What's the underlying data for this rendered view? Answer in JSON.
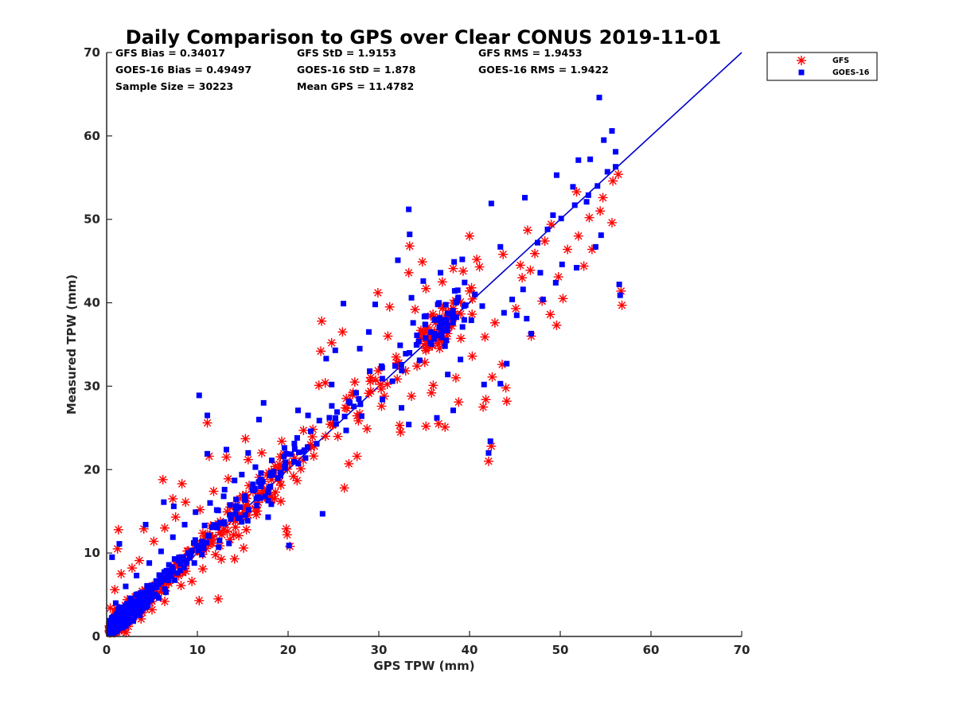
{
  "chart_data": {
    "type": "scatter",
    "title": "Daily Comparison to GPS over Clear CONUS 2019-11-01",
    "xlabel": "GPS TPW (mm)",
    "ylabel": "Measured TPW (mm)",
    "xlim": [
      0,
      70
    ],
    "ylim": [
      0,
      70
    ],
    "xticks": [
      "0",
      "10",
      "20",
      "30",
      "40",
      "50",
      "60",
      "70"
    ],
    "yticks": [
      "0",
      "10",
      "20",
      "30",
      "40",
      "50",
      "60",
      "70"
    ],
    "legend_position": "outside-top-right",
    "stats": [
      [
        "GFS Bias = 0.34017",
        "GFS StD = 1.9153",
        "GFS RMS = 1.9453"
      ],
      [
        "GOES-16 Bias = 0.49497",
        "GOES-16 StD = 1.878",
        "GOES-16 RMS = 1.9422"
      ],
      [
        "Sample Size = 30223",
        "Mean GPS = 11.4782"
      ]
    ],
    "reference_line": {
      "name": "1:1 line",
      "color": "#0000cc",
      "x": [
        0,
        70
      ],
      "y": [
        0,
        70
      ]
    },
    "series": [
      {
        "name": "GFS",
        "marker": "asterisk",
        "color": "#ff0000",
        "points": [
          [
            1.3,
            12.8
          ],
          [
            1.2,
            10.5
          ],
          [
            4.1,
            12.9
          ],
          [
            6.2,
            18.8
          ],
          [
            7.3,
            16.5
          ],
          [
            8.3,
            18.3
          ],
          [
            11.1,
            25.6
          ],
          [
            11.3,
            21.6
          ],
          [
            13.2,
            21.5
          ],
          [
            15.3,
            23.7
          ],
          [
            15.1,
            10.6
          ],
          [
            14.1,
            9.3
          ],
          [
            12.3,
            4.5
          ],
          [
            10.2,
            4.3
          ],
          [
            19.2,
            16.2
          ],
          [
            19.8,
            12.9
          ],
          [
            19.9,
            12.2
          ],
          [
            20.2,
            10.8
          ],
          [
            23.7,
            37.8
          ],
          [
            23.6,
            34.2
          ],
          [
            24.8,
            35.2
          ],
          [
            26.0,
            36.5
          ],
          [
            26.7,
            20.7
          ],
          [
            26.2,
            17.8
          ],
          [
            23.4,
            30.1
          ],
          [
            26.3,
            27.4
          ],
          [
            27.6,
            21.6
          ],
          [
            30.3,
            27.6
          ],
          [
            30.6,
            28.8
          ],
          [
            32.4,
            24.5
          ],
          [
            32.3,
            25.3
          ],
          [
            35.2,
            25.2
          ],
          [
            36.6,
            25.5
          ],
          [
            37.3,
            25.1
          ],
          [
            33.3,
            43.6
          ],
          [
            33.4,
            46.8
          ],
          [
            34.8,
            44.9
          ],
          [
            40.0,
            48.0
          ],
          [
            41.1,
            44.3
          ],
          [
            41.5,
            27.5
          ],
          [
            41.8,
            28.4
          ],
          [
            42.1,
            21.0
          ],
          [
            42.4,
            22.8
          ],
          [
            44.1,
            28.2
          ],
          [
            43.6,
            32.6
          ],
          [
            42.5,
            31.1
          ],
          [
            45.1,
            39.3
          ],
          [
            45.8,
            43.0
          ],
          [
            45.6,
            44.5
          ],
          [
            46.8,
            36.0
          ],
          [
            48.0,
            40.2
          ],
          [
            48.9,
            38.6
          ],
          [
            49.6,
            37.3
          ],
          [
            50.3,
            40.5
          ],
          [
            49.8,
            43.1
          ],
          [
            50.8,
            46.4
          ],
          [
            52.6,
            44.4
          ],
          [
            53.5,
            46.4
          ],
          [
            54.4,
            51.0
          ],
          [
            55.7,
            49.6
          ],
          [
            56.7,
            41.4
          ],
          [
            56.8,
            39.7
          ],
          [
            55.8,
            54.6
          ],
          [
            56.4,
            55.4
          ],
          [
            46.4,
            48.7
          ],
          [
            48.3,
            47.4
          ],
          [
            51.8,
            53.3
          ],
          [
            46.7,
            43.9
          ],
          [
            43.7,
            45.8
          ],
          [
            38.2,
            44.1
          ],
          [
            35.8,
            29.2
          ],
          [
            33.6,
            28.8
          ],
          [
            38.8,
            28.1
          ],
          [
            31.9,
            33.5
          ],
          [
            31.0,
            36.0
          ],
          [
            29.1,
            29.4
          ],
          [
            28.7,
            24.9
          ],
          [
            27.9,
            26.7
          ],
          [
            24.1,
            30.4
          ],
          [
            22.9,
            22.8
          ],
          [
            21.4,
            20.1
          ],
          [
            20.6,
            19.2
          ],
          [
            18.6,
            17.3
          ],
          [
            17.9,
            16.4
          ],
          [
            16.5,
            14.6
          ],
          [
            15.4,
            12.8
          ],
          [
            13.6,
            11.6
          ],
          [
            12.0,
            9.8
          ],
          [
            10.6,
            8.1
          ],
          [
            9.4,
            6.6
          ],
          [
            8.2,
            6.1
          ],
          [
            6.4,
            4.2
          ],
          [
            5.0,
            3.2
          ],
          [
            3.8,
            2.1
          ],
          [
            2.4,
            1.2
          ],
          [
            1.4,
            0.8
          ],
          [
            0.4,
            3.4
          ],
          [
            0.9,
            5.6
          ],
          [
            1.6,
            7.5
          ],
          [
            2.8,
            8.2
          ],
          [
            3.6,
            9.1
          ],
          [
            5.2,
            11.4
          ],
          [
            6.4,
            13.0
          ],
          [
            7.6,
            14.3
          ],
          [
            8.7,
            16.1
          ],
          [
            10.3,
            15.2
          ],
          [
            11.8,
            17.4
          ],
          [
            13.4,
            18.9
          ],
          [
            15.6,
            21.2
          ],
          [
            17.1,
            22.0
          ],
          [
            19.3,
            23.4
          ],
          [
            21.7,
            24.7
          ],
          [
            36.0,
            30.1
          ],
          [
            38.5,
            31.0
          ],
          [
            40.3,
            33.6
          ],
          [
            41.7,
            35.9
          ],
          [
            42.8,
            37.6
          ],
          [
            37.0,
            42.5
          ],
          [
            35.2,
            41.7
          ],
          [
            34.0,
            39.2
          ],
          [
            39.3,
            43.8
          ],
          [
            40.8,
            45.2
          ],
          [
            47.2,
            45.9
          ],
          [
            49.0,
            49.4
          ],
          [
            52.0,
            48.0
          ],
          [
            53.2,
            50.2
          ],
          [
            54.7,
            52.6
          ],
          [
            44.0,
            29.8
          ],
          [
            29.9,
            41.2
          ],
          [
            31.2,
            39.5
          ]
        ]
      },
      {
        "name": "GOES-16",
        "marker": "square",
        "color": "#0000ff",
        "points": [
          [
            10.2,
            28.9
          ],
          [
            11.1,
            26.5
          ],
          [
            11.1,
            21.9
          ],
          [
            16.8,
            26.0
          ],
          [
            17.3,
            28.0
          ],
          [
            13.2,
            22.4
          ],
          [
            4.3,
            13.4
          ],
          [
            6.3,
            16.1
          ],
          [
            1.4,
            11.1
          ],
          [
            0.6,
            9.5
          ],
          [
            7.4,
            15.6
          ],
          [
            33.3,
            51.2
          ],
          [
            33.4,
            48.2
          ],
          [
            32.1,
            45.1
          ],
          [
            33.6,
            40.6
          ],
          [
            29.6,
            39.8
          ],
          [
            26.1,
            39.9
          ],
          [
            28.9,
            36.5
          ],
          [
            27.9,
            34.5
          ],
          [
            25.2,
            34.3
          ],
          [
            24.2,
            33.3
          ],
          [
            23.8,
            14.7
          ],
          [
            26.4,
            24.7
          ],
          [
            24.8,
            30.2
          ],
          [
            28.1,
            26.4
          ],
          [
            30.4,
            28.4
          ],
          [
            32.5,
            27.4
          ],
          [
            33.3,
            25.4
          ],
          [
            36.4,
            26.2
          ],
          [
            38.2,
            27.1
          ],
          [
            41.6,
            30.2
          ],
          [
            42.1,
            22.0
          ],
          [
            42.3,
            23.4
          ],
          [
            43.4,
            30.3
          ],
          [
            44.1,
            32.7
          ],
          [
            45.2,
            38.5
          ],
          [
            46.3,
            38.1
          ],
          [
            46.8,
            36.3
          ],
          [
            48.1,
            40.4
          ],
          [
            49.5,
            42.4
          ],
          [
            50.2,
            44.6
          ],
          [
            51.8,
            44.2
          ],
          [
            53.9,
            46.7
          ],
          [
            54.5,
            48.1
          ],
          [
            56.6,
            40.9
          ],
          [
            56.5,
            42.2
          ],
          [
            54.3,
            64.6
          ],
          [
            55.7,
            60.6
          ],
          [
            56.1,
            58.1
          ],
          [
            54.8,
            59.5
          ],
          [
            53.3,
            57.2
          ],
          [
            56.1,
            56.3
          ],
          [
            52.0,
            57.1
          ],
          [
            49.6,
            55.3
          ],
          [
            46.1,
            52.6
          ],
          [
            42.4,
            51.9
          ],
          [
            49.2,
            50.5
          ],
          [
            53.1,
            52.9
          ],
          [
            51.4,
            53.9
          ],
          [
            43.4,
            46.7
          ],
          [
            39.2,
            45.2
          ],
          [
            38.3,
            44.9
          ],
          [
            36.8,
            43.6
          ],
          [
            34.9,
            42.6
          ],
          [
            20.1,
            10.9
          ],
          [
            17.8,
            14.3
          ],
          [
            21.1,
            27.1
          ],
          [
            22.2,
            26.5
          ],
          [
            15.6,
            22.0
          ],
          [
            14.1,
            18.7
          ],
          [
            12.9,
            16.8
          ],
          [
            12.3,
            15.1
          ],
          [
            10.8,
            13.3
          ],
          [
            9.6,
            11.2
          ],
          [
            8.0,
            9.1
          ],
          [
            6.9,
            7.4
          ],
          [
            5.5,
            5.9
          ],
          [
            4.3,
            4.7
          ],
          [
            3.0,
            3.1
          ],
          [
            1.8,
            1.9
          ],
          [
            0.6,
            1.2
          ],
          [
            1.0,
            4.0
          ],
          [
            2.1,
            6.0
          ],
          [
            3.3,
            7.3
          ],
          [
            4.7,
            8.8
          ],
          [
            6.0,
            10.2
          ],
          [
            7.3,
            11.9
          ],
          [
            8.6,
            13.4
          ],
          [
            9.8,
            14.9
          ],
          [
            11.4,
            16.0
          ],
          [
            13.0,
            17.6
          ],
          [
            14.9,
            19.4
          ],
          [
            16.4,
            20.3
          ],
          [
            18.2,
            21.1
          ],
          [
            19.6,
            22.6
          ],
          [
            21.0,
            23.8
          ],
          [
            22.5,
            24.6
          ],
          [
            34.5,
            33.1
          ],
          [
            35.7,
            35.2
          ],
          [
            36.9,
            36.7
          ],
          [
            38.1,
            38.3
          ],
          [
            39.4,
            39.6
          ],
          [
            40.6,
            41.0
          ],
          [
            37.3,
            34.8
          ],
          [
            35.1,
            37.4
          ],
          [
            34.2,
            36.1
          ],
          [
            36.5,
            39.8
          ],
          [
            38.7,
            41.5
          ],
          [
            40.2,
            37.9
          ],
          [
            41.4,
            39.6
          ],
          [
            39.0,
            33.2
          ],
          [
            37.6,
            31.4
          ],
          [
            47.5,
            47.2
          ],
          [
            48.6,
            48.8
          ],
          [
            50.1,
            50.1
          ],
          [
            51.6,
            51.7
          ],
          [
            52.9,
            52.1
          ],
          [
            54.1,
            54.0
          ],
          [
            55.2,
            55.7
          ],
          [
            47.8,
            43.6
          ],
          [
            45.9,
            41.6
          ],
          [
            44.7,
            40.4
          ],
          [
            43.8,
            38.8
          ],
          [
            31.5,
            30.6
          ],
          [
            30.3,
            32.4
          ],
          [
            29.0,
            31.8
          ],
          [
            27.5,
            29.2
          ],
          [
            26.8,
            28.0
          ],
          [
            25.4,
            26.9
          ]
        ]
      }
    ]
  }
}
